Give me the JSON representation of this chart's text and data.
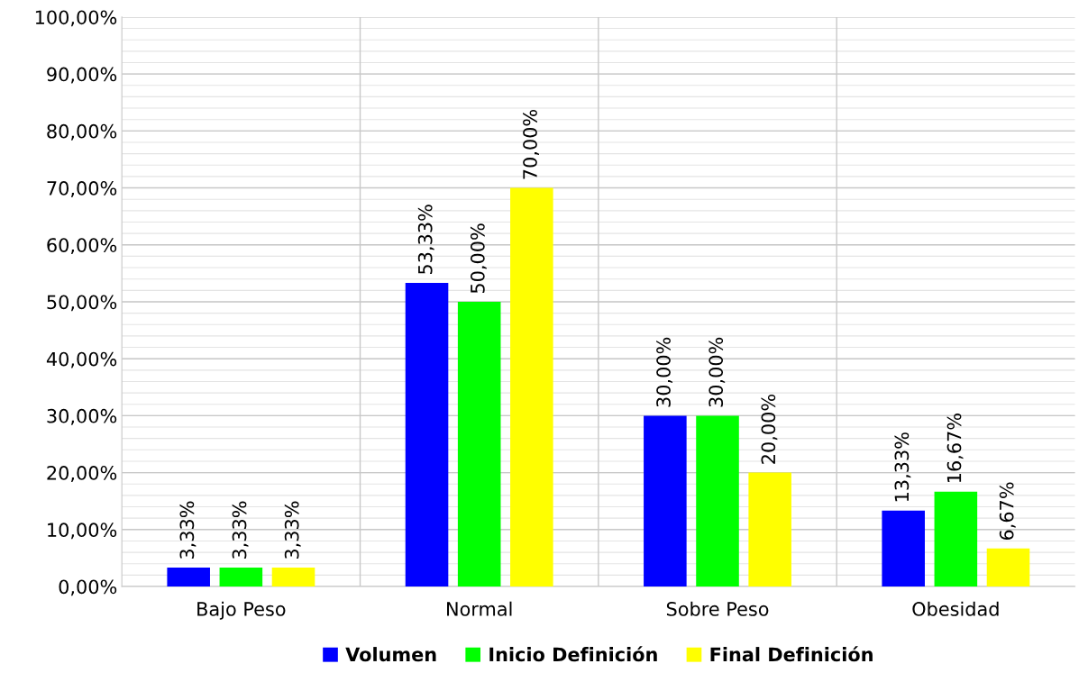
{
  "chart_data": {
    "type": "bar",
    "categories": [
      "Bajo Peso",
      "Normal",
      "Sobre Peso",
      "Obesidad"
    ],
    "series": [
      {
        "name": "Volumen",
        "color": "#0000ff",
        "values": [
          3.33,
          53.33,
          30.0,
          13.33
        ],
        "value_labels": [
          "3,33%",
          "53,33%",
          "30,00%",
          "13,33%"
        ]
      },
      {
        "name": "Inicio Definición",
        "color": "#00ff00",
        "values": [
          3.33,
          50.0,
          30.0,
          16.67
        ],
        "value_labels": [
          "3,33%",
          "50,00%",
          "30,00%",
          "16,67%"
        ]
      },
      {
        "name": "Final Definición",
        "color": "#ffff00",
        "values": [
          3.33,
          70.0,
          20.0,
          6.67
        ],
        "value_labels": [
          "3,33%",
          "70,00%",
          "20,00%",
          "6,67%"
        ]
      }
    ],
    "ylim": [
      0,
      100
    ],
    "yticks": [
      {
        "value": 0,
        "label": "0,00%"
      },
      {
        "value": 10,
        "label": "10,00%"
      },
      {
        "value": 20,
        "label": "20,00%"
      },
      {
        "value": 30,
        "label": "30,00%"
      },
      {
        "value": 40,
        "label": "40,00%"
      },
      {
        "value": 50,
        "label": "50,00%"
      },
      {
        "value": 60,
        "label": "60,00%"
      },
      {
        "value": 70,
        "label": "70,00%"
      },
      {
        "value": 80,
        "label": "80,00%"
      },
      {
        "value": 90,
        "label": "90,00%"
      },
      {
        "value": 100,
        "label": "100,00%"
      }
    ],
    "grid": true,
    "legend": "bottom"
  }
}
